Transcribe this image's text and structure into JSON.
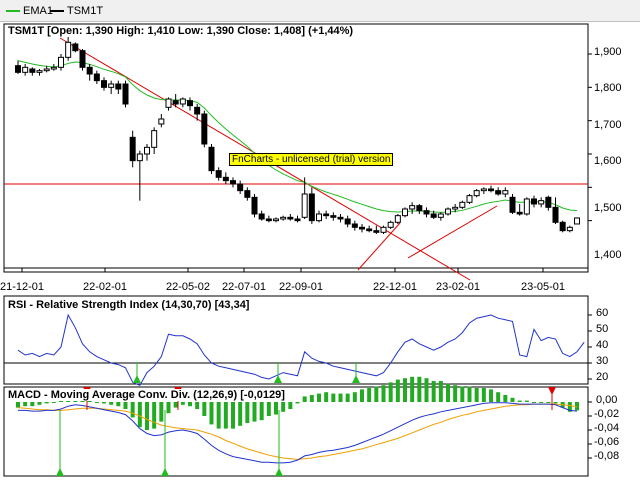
{
  "legend": [
    {
      "label": "EMA1",
      "color": "#22bb22"
    },
    {
      "label": "TSM1T",
      "color": "#000000"
    }
  ],
  "watermark": "FnCharts - unlicensed (trial) version",
  "price_panel": {
    "title": "TSM1T [Open: 1,390  High: 1,410  Low: 1,390  Close: 1,408] (+1,44%)",
    "yticks": [
      "1,900",
      "1,800",
      "1,700",
      "1,600",
      "1,500",
      "1,400"
    ],
    "xticks": [
      "21-12-01",
      "22-02-01",
      "22-05-02",
      "22-07-01",
      "22-09-01",
      "22-12-01",
      "23-02-01",
      "23-05-01"
    ]
  },
  "rsi_panel": {
    "title": "RSI - Relative Strength Index (14,30,70) [43,34]",
    "yticks": [
      "60",
      "50",
      "40",
      "30",
      "20"
    ]
  },
  "macd_panel": {
    "title": "MACD - Moving Average Conv. Div. (12,26,9) [-0,0129]",
    "yticks": [
      "0,00",
      "-0,02",
      "-0,04",
      "-0,06",
      "-0,08"
    ]
  },
  "colors": {
    "ema": "#22bb22",
    "trend": "#dd0000",
    "rsi": "#2233cc",
    "macd": "#2233cc",
    "signal": "#f0a000",
    "hist": "#22aa22",
    "buy": "#22bb22",
    "sell": "#dd0000"
  },
  "chart_data": [
    {
      "type": "candlestick",
      "series_name": "TSM1T",
      "ylim": [
        1350,
        1950
      ],
      "candles": [
        [
          1.865,
          1.88,
          1.84,
          1.845
        ],
        [
          1.845,
          1.87,
          1.835,
          1.86
        ],
        [
          1.855,
          1.86,
          1.835,
          1.845
        ],
        [
          1.845,
          1.855,
          1.835,
          1.85
        ],
        [
          1.85,
          1.865,
          1.845,
          1.855
        ],
        [
          1.855,
          1.87,
          1.85,
          1.86
        ],
        [
          1.86,
          1.9,
          1.85,
          1.89
        ],
        [
          1.89,
          1.96,
          1.88,
          1.935
        ],
        [
          1.93,
          1.935,
          1.905,
          1.91
        ],
        [
          1.91,
          1.915,
          1.85,
          1.86
        ],
        [
          1.86,
          1.87,
          1.82,
          1.84
        ],
        [
          1.84,
          1.85,
          1.81,
          1.82
        ],
        [
          1.82,
          1.83,
          1.79,
          1.8
        ],
        [
          1.8,
          1.82,
          1.78,
          1.81
        ],
        [
          1.81,
          1.82,
          1.78,
          1.795
        ],
        [
          1.81,
          1.82,
          1.74,
          1.75
        ],
        [
          1.65,
          1.67,
          1.56,
          1.58
        ],
        [
          1.58,
          1.61,
          1.46,
          1.6
        ],
        [
          1.6,
          1.63,
          1.58,
          1.62
        ],
        [
          1.62,
          1.68,
          1.6,
          1.67
        ],
        [
          1.69,
          1.72,
          1.68,
          1.705
        ],
        [
          1.74,
          1.77,
          1.73,
          1.765
        ],
        [
          1.76,
          1.78,
          1.74,
          1.75
        ],
        [
          1.75,
          1.77,
          1.74,
          1.765
        ],
        [
          1.76,
          1.77,
          1.73,
          1.745
        ],
        [
          1.74,
          1.75,
          1.7,
          1.72
        ],
        [
          1.72,
          1.73,
          1.62,
          1.63
        ],
        [
          1.62,
          1.63,
          1.54,
          1.55
        ],
        [
          1.55,
          1.56,
          1.52,
          1.53
        ],
        [
          1.53,
          1.545,
          1.51,
          1.52
        ],
        [
          1.52,
          1.53,
          1.5,
          1.51
        ],
        [
          1.51,
          1.52,
          1.48,
          1.49
        ],
        [
          1.49,
          1.5,
          1.46,
          1.47
        ],
        [
          1.47,
          1.48,
          1.41,
          1.42
        ],
        [
          1.42,
          1.43,
          1.4,
          1.405
        ],
        [
          1.405,
          1.415,
          1.395,
          1.4
        ],
        [
          1.4,
          1.41,
          1.395,
          1.405
        ],
        [
          1.405,
          1.415,
          1.4,
          1.41
        ],
        [
          1.41,
          1.42,
          1.4,
          1.405
        ],
        [
          1.405,
          1.415,
          1.395,
          1.4
        ],
        [
          1.41,
          1.53,
          1.405,
          1.48
        ],
        [
          1.48,
          1.5,
          1.39,
          1.4
        ],
        [
          1.4,
          1.43,
          1.395,
          1.42
        ],
        [
          1.42,
          1.43,
          1.405,
          1.415
        ],
        [
          1.415,
          1.425,
          1.4,
          1.41
        ],
        [
          1.41,
          1.42,
          1.395,
          1.405
        ],
        [
          1.405,
          1.415,
          1.38,
          1.39
        ],
        [
          1.39,
          1.4,
          1.37,
          1.38
        ],
        [
          1.38,
          1.39,
          1.365,
          1.375
        ],
        [
          1.375,
          1.385,
          1.365,
          1.37
        ],
        [
          1.37,
          1.385,
          1.36,
          1.365
        ],
        [
          1.365,
          1.385,
          1.36,
          1.38
        ],
        [
          1.38,
          1.4,
          1.375,
          1.395
        ],
        [
          1.395,
          1.42,
          1.39,
          1.415
        ],
        [
          1.415,
          1.44,
          1.41,
          1.435
        ],
        [
          1.435,
          1.455,
          1.42,
          1.445
        ],
        [
          1.445,
          1.45,
          1.42,
          1.43
        ],
        [
          1.43,
          1.44,
          1.41,
          1.42
        ],
        [
          1.42,
          1.43,
          1.405,
          1.41
        ],
        [
          1.41,
          1.425,
          1.4,
          1.42
        ],
        [
          1.42,
          1.44,
          1.415,
          1.435
        ],
        [
          1.435,
          1.45,
          1.425,
          1.44
        ],
        [
          1.44,
          1.46,
          1.435,
          1.455
        ],
        [
          1.455,
          1.48,
          1.45,
          1.475
        ],
        [
          1.475,
          1.495,
          1.47,
          1.49
        ],
        [
          1.49,
          1.5,
          1.48,
          1.495
        ],
        [
          1.495,
          1.505,
          1.485,
          1.49
        ],
        [
          1.49,
          1.5,
          1.475,
          1.48
        ],
        [
          1.48,
          1.5,
          1.47,
          1.49
        ],
        [
          1.47,
          1.48,
          1.42,
          1.425
        ],
        [
          1.425,
          1.45,
          1.415,
          1.42
        ],
        [
          1.42,
          1.47,
          1.415,
          1.465
        ],
        [
          1.465,
          1.475,
          1.44,
          1.45
        ],
        [
          1.45,
          1.47,
          1.44,
          1.46
        ],
        [
          1.47,
          1.475,
          1.43,
          1.44
        ],
        [
          1.44,
          1.47,
          1.39,
          1.395
        ],
        [
          1.395,
          1.4,
          1.365,
          1.37
        ],
        [
          1.37,
          1.385,
          1.365,
          1.38
        ],
        [
          1.39,
          1.41,
          1.39,
          1.408
        ]
      ]
    },
    {
      "type": "line",
      "series_name": "EMA1",
      "ylim": [
        1350,
        1950
      ],
      "values": [
        1.88,
        1.875,
        1.87,
        1.866,
        1.863,
        1.861,
        1.864,
        1.872,
        1.876,
        1.874,
        1.869,
        1.862,
        1.854,
        1.848,
        1.841,
        1.831,
        1.808,
        1.79,
        1.777,
        1.768,
        1.763,
        1.763,
        1.762,
        1.762,
        1.76,
        1.755,
        1.738,
        1.715,
        1.694,
        1.675,
        1.657,
        1.64,
        1.623,
        1.602,
        1.583,
        1.566,
        1.552,
        1.54,
        1.53,
        1.52,
        1.515,
        1.503,
        1.494,
        1.486,
        1.479,
        1.472,
        1.464,
        1.456,
        1.449,
        1.442,
        1.435,
        1.43,
        1.427,
        1.426,
        1.427,
        1.429,
        1.429,
        1.428,
        1.426,
        1.425,
        1.426,
        1.428,
        1.431,
        1.437,
        1.443,
        1.45,
        1.455,
        1.458,
        1.462,
        1.458,
        1.455,
        1.456,
        1.456,
        1.457,
        1.455,
        1.448,
        1.438,
        1.432,
        1.43
      ]
    },
    {
      "type": "line",
      "series_name": "RSI",
      "ylim": [
        14,
        66
      ],
      "guides": [
        30
      ],
      "values": [
        38,
        35,
        36,
        34,
        36,
        35,
        40,
        60,
        52,
        42,
        37,
        34,
        32,
        30,
        29,
        27,
        18,
        16,
        24,
        28,
        34,
        48,
        47,
        47,
        45,
        42,
        35,
        30,
        28,
        27,
        26,
        25,
        24,
        23,
        21,
        20,
        22,
        24,
        23,
        22,
        37,
        33,
        31,
        30,
        28,
        27,
        26,
        25,
        24,
        23,
        22,
        24,
        30,
        37,
        43,
        45,
        42,
        40,
        38,
        40,
        43,
        45,
        49,
        55,
        58,
        59,
        60,
        58,
        57,
        56,
        35,
        34,
        51,
        44,
        46,
        45,
        36,
        34,
        37,
        43
      ]
    },
    {
      "type": "line",
      "series_name": "MACD",
      "ylim": [
        -0.094,
        0.006
      ],
      "values": [
        -0.012,
        -0.012,
        -0.013,
        -0.013,
        -0.012,
        -0.012,
        -0.01,
        -0.006,
        -0.004,
        -0.005,
        -0.007,
        -0.009,
        -0.011,
        -0.013,
        -0.015,
        -0.018,
        -0.027,
        -0.038,
        -0.045,
        -0.048,
        -0.047,
        -0.043,
        -0.041,
        -0.04,
        -0.042,
        -0.045,
        -0.053,
        -0.062,
        -0.069,
        -0.074,
        -0.078,
        -0.08,
        -0.082,
        -0.084,
        -0.086,
        -0.086,
        -0.087,
        -0.087,
        -0.086,
        -0.083,
        -0.077,
        -0.075,
        -0.072,
        -0.07,
        -0.069,
        -0.067,
        -0.065,
        -0.062,
        -0.058,
        -0.054,
        -0.05,
        -0.046,
        -0.041,
        -0.036,
        -0.031,
        -0.026,
        -0.022,
        -0.019,
        -0.017,
        -0.014,
        -0.012,
        -0.01,
        -0.008,
        -0.006,
        -0.004,
        -0.002,
        -0.001,
        -0.001,
        -0.001,
        -0.002,
        -0.003,
        -0.003,
        -0.003,
        -0.003,
        -0.003,
        -0.004,
        -0.008,
        -0.012,
        -0.013
      ]
    },
    {
      "type": "line",
      "series_name": "Signal",
      "ylim": [
        -0.094,
        0.006
      ],
      "values": [
        -0.008,
        -0.009,
        -0.01,
        -0.011,
        -0.011,
        -0.012,
        -0.012,
        -0.011,
        -0.01,
        -0.009,
        -0.009,
        -0.009,
        -0.01,
        -0.011,
        -0.012,
        -0.013,
        -0.016,
        -0.02,
        -0.025,
        -0.029,
        -0.033,
        -0.035,
        -0.037,
        -0.038,
        -0.039,
        -0.04,
        -0.043,
        -0.046,
        -0.05,
        -0.055,
        -0.059,
        -0.063,
        -0.067,
        -0.07,
        -0.073,
        -0.076,
        -0.078,
        -0.08,
        -0.081,
        -0.082,
        -0.081,
        -0.08,
        -0.078,
        -0.077,
        -0.075,
        -0.073,
        -0.071,
        -0.069,
        -0.067,
        -0.064,
        -0.061,
        -0.058,
        -0.055,
        -0.052,
        -0.048,
        -0.044,
        -0.04,
        -0.036,
        -0.032,
        -0.029,
        -0.025,
        -0.022,
        -0.019,
        -0.017,
        -0.014,
        -0.012,
        -0.01,
        -0.008,
        -0.006,
        -0.005,
        -0.004,
        -0.004,
        -0.003,
        -0.003,
        -0.003,
        -0.003,
        -0.004,
        -0.005,
        -0.007
      ]
    }
  ]
}
